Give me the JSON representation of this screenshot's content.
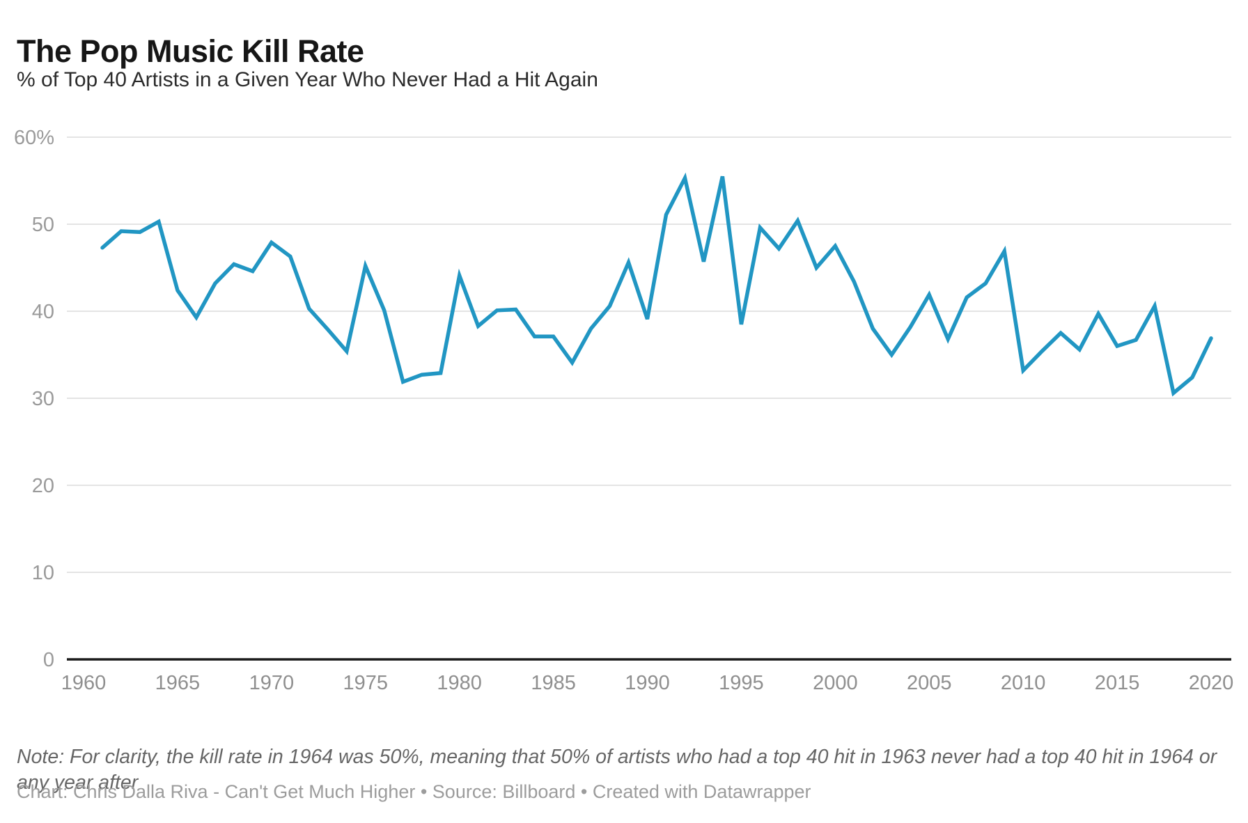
{
  "header": {
    "title": "The Pop Music Kill Rate",
    "subtitle": "% of Top 40 Artists in a Given Year Who Never Had a Hit Again"
  },
  "chart_data": {
    "type": "line",
    "series_name": "% of Top 40 artists who never had a hit again",
    "x": [
      1961,
      1962,
      1963,
      1964,
      1965,
      1966,
      1967,
      1968,
      1969,
      1970,
      1971,
      1972,
      1973,
      1974,
      1975,
      1976,
      1977,
      1978,
      1979,
      1980,
      1981,
      1982,
      1983,
      1984,
      1985,
      1986,
      1987,
      1988,
      1989,
      1990,
      1991,
      1992,
      1993,
      1994,
      1995,
      1996,
      1997,
      1998,
      1999,
      2000,
      2001,
      2002,
      2003,
      2004,
      2005,
      2006,
      2007,
      2008,
      2009,
      2010,
      2011,
      2012,
      2013,
      2014,
      2015,
      2016,
      2017,
      2018,
      2019,
      2020
    ],
    "values": [
      47.3,
      49.2,
      49.1,
      50.3,
      42.4,
      39.3,
      43.2,
      45.4,
      44.6,
      47.9,
      46.3,
      40.3,
      37.9,
      35.4,
      45.2,
      40.1,
      31.9,
      32.7,
      32.9,
      44.1,
      38.3,
      40.1,
      40.2,
      37.1,
      37.1,
      34.1,
      38.0,
      40.6,
      45.6,
      39.1,
      51.1,
      55.3,
      45.7,
      55.5,
      38.5,
      49.6,
      47.2,
      50.4,
      45.0,
      47.5,
      43.4,
      38.0,
      35.0,
      38.2,
      41.9,
      36.8,
      41.6,
      43.2,
      46.9,
      33.2,
      35.4,
      37.5,
      35.6,
      39.7,
      36.0,
      36.7,
      40.6,
      30.6,
      32.4,
      36.9
    ],
    "title": "The Pop Music Kill Rate",
    "xlabel": "",
    "ylabel": "% of Top 40 Artists in a Given Year Who Never Had a Hit Again",
    "xlim": [
      1960,
      2021
    ],
    "ylim": [
      0,
      60
    ],
    "x_ticks": [
      1960,
      1965,
      1970,
      1975,
      1980,
      1985,
      1990,
      1995,
      2000,
      2005,
      2010,
      2015,
      2020
    ],
    "y_ticks_top_to_bottom": [
      60,
      50,
      40,
      30,
      20,
      10,
      0
    ],
    "y_tick_labels_top_to_bottom": [
      "60%",
      "50",
      "40",
      "30",
      "20",
      "10",
      "0"
    ],
    "grid": "horizontal-only",
    "legend": "none"
  },
  "footer": {
    "note": "Note: For clarity, the kill rate in 1964 was 50%, meaning that 50% of artists who had a top 40 hit in 1963 never had a top 40 hit in 1964 or any year after",
    "attribution": "Chart: Chris Dalla Riva - Can't Get Much Higher • Source: Billboard • Created with Datawrapper"
  },
  "colors": {
    "line": "#2196c3",
    "axis": "#1a1a1a",
    "gridline": "#e4e4e4",
    "tick_label": "#9a9a9a",
    "x_tick_label": "#8f8f8f",
    "title": "#161616",
    "subtitle": "#2b2b2b",
    "note": "#666666",
    "attribution": "#9c9c9c"
  }
}
